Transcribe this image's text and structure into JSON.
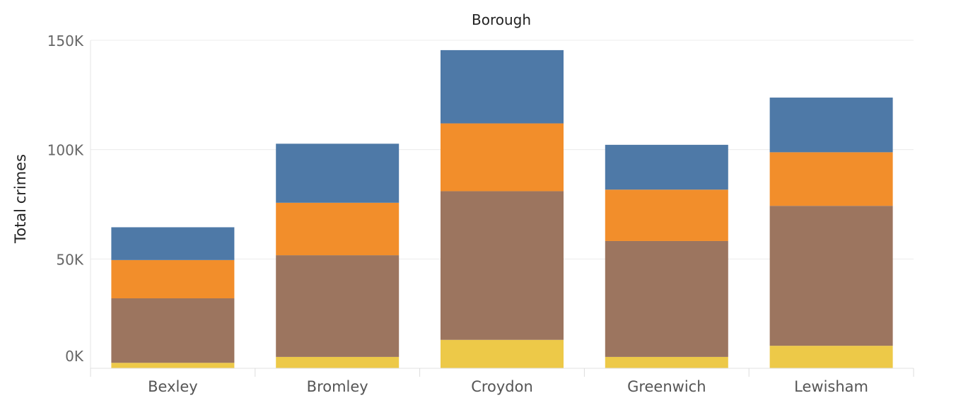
{
  "chart_data": {
    "type": "bar",
    "stacked": true,
    "column_header": "Borough",
    "ylabel": "Total crimes",
    "xlabel": "",
    "ylim": [
      0,
      150000
    ],
    "y_ticks": [
      0,
      50000,
      100000,
      150000
    ],
    "y_tick_labels": [
      "0K",
      "50K",
      "100K",
      "150K"
    ],
    "grid": true,
    "legend": "none",
    "categories": [
      "Bexley",
      "Bromley",
      "Croydon",
      "Greenwich",
      "Lewisham"
    ],
    "series": [
      {
        "color": "#edc948",
        "values": [
          2500,
          5200,
          13000,
          5200,
          10300
        ]
      },
      {
        "color": "#9c755f",
        "values": [
          29500,
          46500,
          68000,
          53000,
          64000
        ]
      },
      {
        "color": "#f28e2b",
        "values": [
          17500,
          24000,
          31000,
          23500,
          24500
        ]
      },
      {
        "color": "#4e79a7",
        "values": [
          15000,
          27000,
          33500,
          20500,
          25000
        ]
      }
    ]
  }
}
